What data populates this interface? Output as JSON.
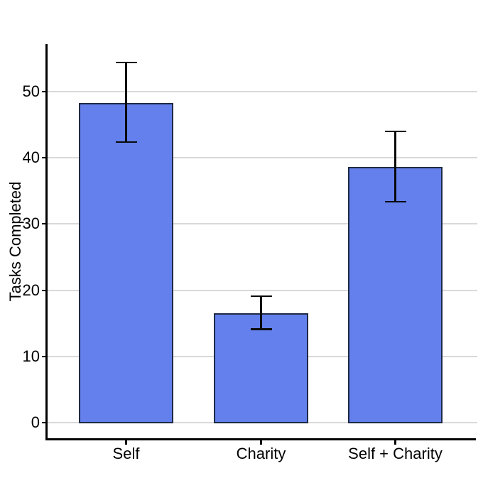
{
  "chart_data": {
    "type": "bar",
    "title": "",
    "categories": [
      "Self",
      "Charity",
      "Self + Charity"
    ],
    "values": [
      48.3,
      16.5,
      38.6
    ],
    "error_upper": [
      54.4,
      19.1,
      44.0
    ],
    "error_lower": [
      42.4,
      14.1,
      33.4
    ],
    "xlabel": "",
    "ylabel": "Tasks Completed",
    "y_ticks": [
      0,
      10,
      20,
      30,
      40,
      50
    ],
    "ylim": [
      0,
      57.2
    ],
    "grid": "horizontal-major",
    "legend": "none",
    "colors": {
      "bar_fill": "#6380EC",
      "bar_border": "#1F2A44",
      "error_bar": "#0A0A0A",
      "gridline": "#D9D9D9",
      "axis_line": "#000000",
      "text": "#000000",
      "background": "#FFFFFF"
    }
  }
}
